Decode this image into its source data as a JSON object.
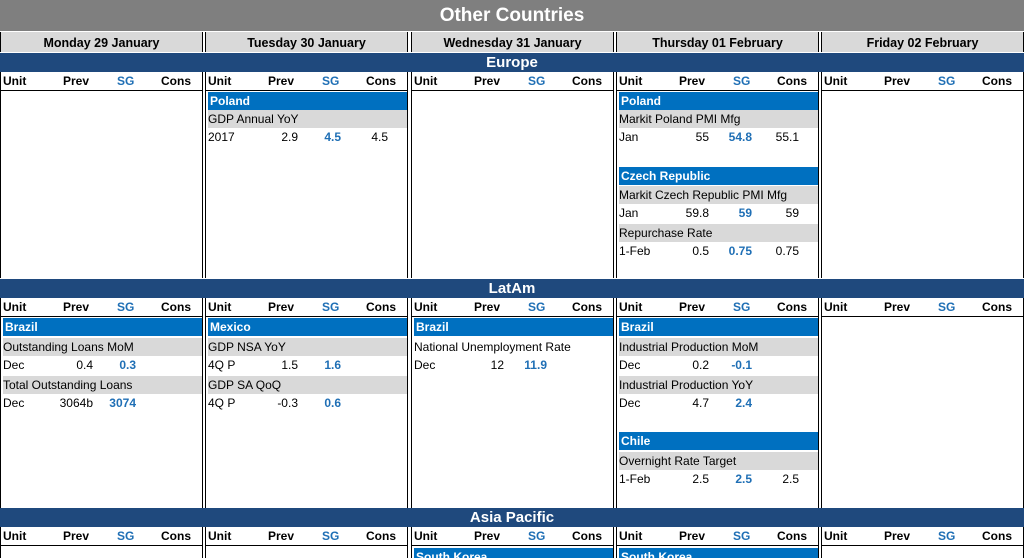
{
  "title": "Other Countries",
  "days": [
    "Monday 29 January",
    "Tuesday 30 January",
    "Wednesday 31 January",
    "Thursday 01 February",
    "Friday 02 February"
  ],
  "col_headers": {
    "unit": "Unit",
    "prev": "Prev",
    "sg": "SG",
    "cons": "Cons"
  },
  "regions": {
    "europe": "Europe",
    "latam": "LatAm",
    "asia": "Asia Pacific"
  },
  "europe": {
    "tue": {
      "country": "Poland",
      "ind1": {
        "name": "GDP Annual YoY",
        "unit": "2017",
        "prev": "2.9",
        "sg": "4.5",
        "cons": "4.5"
      }
    },
    "thu": {
      "country1": "Poland",
      "ind1": {
        "name": "Markit Poland PMI Mfg",
        "unit": "Jan",
        "prev": "55",
        "sg": "54.8",
        "cons": "55.1"
      },
      "country2": "Czech Republic",
      "ind2": {
        "name": "Markit Czech Republic PMI Mfg",
        "unit": "Jan",
        "prev": "59.8",
        "sg": "59",
        "cons": "59"
      },
      "ind3": {
        "name": "Repurchase Rate",
        "unit": "1-Feb",
        "prev": "0.5",
        "sg": "0.75",
        "cons": "0.75"
      }
    }
  },
  "latam": {
    "mon": {
      "country": "Brazil",
      "ind1": {
        "name": "Outstanding Loans MoM",
        "unit": "Dec",
        "prev": "0.4",
        "sg": "0.3",
        "cons": ""
      },
      "ind2": {
        "name": "Total Outstanding Loans",
        "unit": "Dec",
        "prev": "3064b",
        "sg": "3074",
        "cons": ""
      }
    },
    "tue": {
      "country": "Mexico",
      "ind1": {
        "name": "GDP NSA YoY",
        "unit": "4Q P",
        "prev": "1.5",
        "sg": "1.6",
        "cons": ""
      },
      "ind2": {
        "name": "GDP SA QoQ",
        "unit": "4Q P",
        "prev": "-0.3",
        "sg": "0.6",
        "cons": ""
      }
    },
    "wed": {
      "country": "Brazil",
      "ind1": {
        "name": "National Unemployment Rate",
        "unit": "Dec",
        "prev": "12",
        "sg": "11.9",
        "cons": ""
      }
    },
    "thu": {
      "country1": "Brazil",
      "ind1": {
        "name": "Industrial Production MoM",
        "unit": "Dec",
        "prev": "0.2",
        "sg": "-0.1",
        "cons": ""
      },
      "ind2": {
        "name": "Industrial Production YoY",
        "unit": "Dec",
        "prev": "4.7",
        "sg": "2.4",
        "cons": ""
      },
      "country2": "Chile",
      "ind3": {
        "name": "Overnight Rate Target",
        "unit": "1-Feb",
        "prev": "2.5",
        "sg": "2.5",
        "cons": "2.5"
      }
    }
  },
  "asia": {
    "wed": {
      "country": "South Korea"
    },
    "thu": {
      "country": "South Korea"
    }
  }
}
